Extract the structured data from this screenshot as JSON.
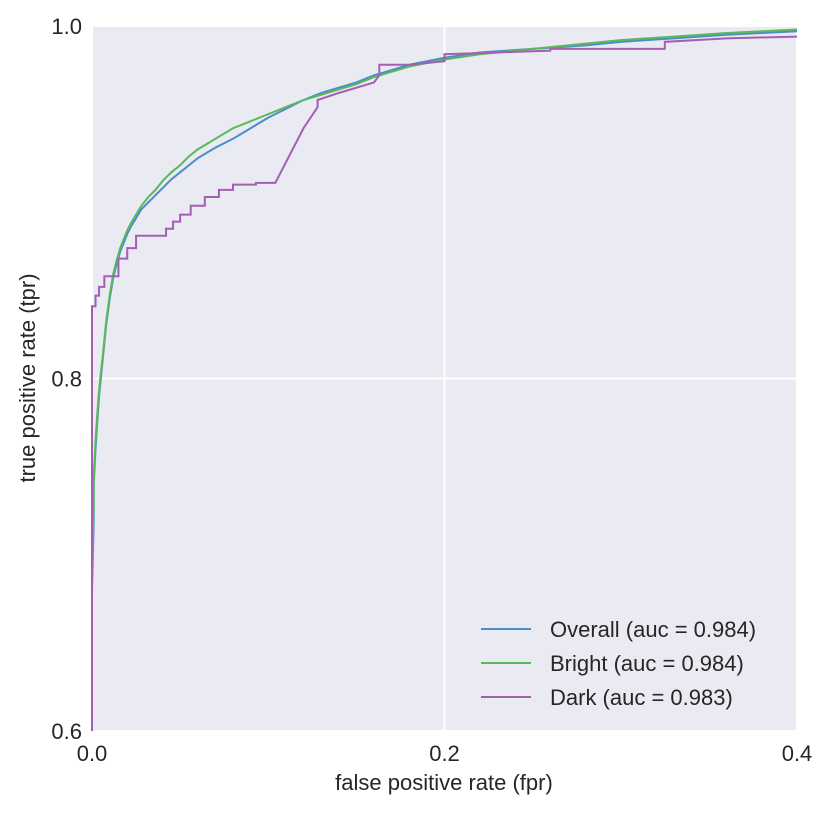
{
  "chart_data": {
    "type": "line",
    "title": "",
    "xlabel": "false positive rate (fpr)",
    "ylabel": "true positive rate (tpr)",
    "xlim": [
      0.0,
      0.4
    ],
    "ylim": [
      0.6,
      1.0
    ],
    "xticks": [
      0.0,
      0.2,
      0.4
    ],
    "xtick_labels": [
      "0.0",
      "0.2",
      "0.4"
    ],
    "yticks": [
      0.6,
      0.8,
      1.0
    ],
    "ytick_labels": [
      "0.6",
      "0.8",
      "1.0"
    ],
    "grid": true,
    "legend_position": "bottom-right",
    "background": "#eaeaf2",
    "series": [
      {
        "name": "Overall (auc = 0.984)",
        "color": "#4c8dc8",
        "x": [
          0.0,
          0.0,
          0.001,
          0.001,
          0.002,
          0.003,
          0.004,
          0.005,
          0.006,
          0.007,
          0.008,
          0.01,
          0.012,
          0.014,
          0.016,
          0.018,
          0.02,
          0.022,
          0.025,
          0.028,
          0.032,
          0.036,
          0.04,
          0.045,
          0.05,
          0.055,
          0.06,
          0.065,
          0.07,
          0.08,
          0.09,
          0.1,
          0.11,
          0.12,
          0.13,
          0.14,
          0.15,
          0.16,
          0.18,
          0.2,
          0.22,
          0.25,
          0.28,
          0.3,
          0.33,
          0.36,
          0.38,
          0.4
        ],
        "y": [
          0.6,
          0.68,
          0.72,
          0.74,
          0.76,
          0.775,
          0.79,
          0.8,
          0.81,
          0.82,
          0.83,
          0.845,
          0.857,
          0.865,
          0.872,
          0.877,
          0.882,
          0.886,
          0.891,
          0.896,
          0.9,
          0.904,
          0.908,
          0.913,
          0.917,
          0.921,
          0.925,
          0.928,
          0.931,
          0.936,
          0.942,
          0.948,
          0.953,
          0.958,
          0.962,
          0.965,
          0.968,
          0.972,
          0.978,
          0.982,
          0.985,
          0.987,
          0.989,
          0.991,
          0.993,
          0.995,
          0.996,
          0.997
        ]
      },
      {
        "name": "Bright (auc = 0.984)",
        "color": "#5ab95a",
        "x": [
          0.0,
          0.0,
          0.001,
          0.001,
          0.002,
          0.003,
          0.004,
          0.005,
          0.006,
          0.007,
          0.008,
          0.01,
          0.012,
          0.014,
          0.016,
          0.018,
          0.02,
          0.022,
          0.025,
          0.028,
          0.032,
          0.036,
          0.04,
          0.045,
          0.05,
          0.055,
          0.06,
          0.065,
          0.07,
          0.08,
          0.09,
          0.1,
          0.11,
          0.12,
          0.13,
          0.14,
          0.15,
          0.16,
          0.18,
          0.2,
          0.22,
          0.25,
          0.28,
          0.3,
          0.33,
          0.36,
          0.38,
          0.4
        ],
        "y": [
          0.6,
          0.69,
          0.73,
          0.745,
          0.765,
          0.78,
          0.793,
          0.803,
          0.812,
          0.822,
          0.832,
          0.847,
          0.859,
          0.867,
          0.874,
          0.879,
          0.884,
          0.888,
          0.893,
          0.898,
          0.903,
          0.907,
          0.912,
          0.917,
          0.921,
          0.926,
          0.93,
          0.933,
          0.936,
          0.942,
          0.946,
          0.95,
          0.954,
          0.958,
          0.961,
          0.964,
          0.967,
          0.971,
          0.977,
          0.981,
          0.984,
          0.987,
          0.99,
          0.992,
          0.994,
          0.996,
          0.997,
          0.998
        ]
      },
      {
        "name": "Dark (auc = 0.983)",
        "color": "#a35fb4",
        "x": [
          0.0,
          0.0,
          0.002,
          0.002,
          0.004,
          0.004,
          0.007,
          0.007,
          0.015,
          0.015,
          0.02,
          0.02,
          0.025,
          0.025,
          0.042,
          0.042,
          0.046,
          0.046,
          0.05,
          0.05,
          0.056,
          0.056,
          0.064,
          0.064,
          0.072,
          0.072,
          0.08,
          0.08,
          0.093,
          0.093,
          0.104,
          0.12,
          0.128,
          0.128,
          0.14,
          0.16,
          0.163,
          0.163,
          0.18,
          0.2,
          0.2,
          0.23,
          0.26,
          0.26,
          0.29,
          0.32,
          0.325,
          0.325,
          0.36,
          0.4
        ],
        "y": [
          0.6,
          0.841,
          0.841,
          0.847,
          0.847,
          0.852,
          0.852,
          0.858,
          0.858,
          0.868,
          0.868,
          0.874,
          0.874,
          0.881,
          0.881,
          0.885,
          0.885,
          0.889,
          0.889,
          0.893,
          0.893,
          0.898,
          0.898,
          0.903,
          0.903,
          0.907,
          0.907,
          0.91,
          0.91,
          0.911,
          0.911,
          0.942,
          0.954,
          0.958,
          0.962,
          0.968,
          0.972,
          0.978,
          0.978,
          0.98,
          0.984,
          0.985,
          0.986,
          0.987,
          0.987,
          0.987,
          0.987,
          0.991,
          0.993,
          0.994
        ]
      }
    ]
  }
}
